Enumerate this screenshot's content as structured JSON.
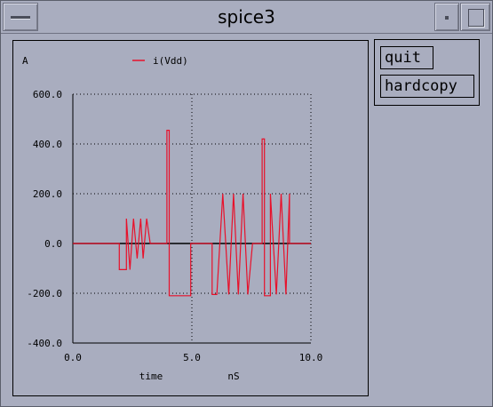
{
  "window": {
    "title": "spice3",
    "menu_icon": "window-menu-icon",
    "minimize_icon": "minimize-icon",
    "maximize_icon": "maximize-icon"
  },
  "buttons": {
    "quit": "quit",
    "hardcopy": "hardcopy"
  },
  "colors": {
    "background": "#a9adbf",
    "trace": "#e8102a",
    "zero_line": "#000000"
  },
  "chart_data": {
    "type": "line",
    "ylabel": "A",
    "xlabel": "time",
    "xunit": "nS",
    "legend": [
      {
        "name": "i(Vdd)",
        "color": "#e8102a"
      }
    ],
    "legend_position": "top",
    "xlim": [
      0,
      10
    ],
    "ylim": [
      -400,
      600
    ],
    "x_ticks": [
      "0.0",
      "5.0",
      "10.0"
    ],
    "x_tick_values": [
      0,
      5,
      10
    ],
    "y_ticks": [
      "600.0",
      "400.0",
      "200.0",
      "0.0",
      "-200.0",
      "-400.0"
    ],
    "y_tick_values": [
      600,
      400,
      200,
      0,
      -200,
      -400
    ],
    "grid": "dotted",
    "series": [
      {
        "name": "i(Vdd)",
        "x": [
          0,
          1.0,
          1.0,
          1.95,
          1.95,
          2.25,
          2.25,
          2.4,
          2.55,
          2.7,
          2.85,
          2.95,
          3.1,
          3.25,
          3.25,
          3.95,
          3.95,
          4.05,
          4.05,
          4.95,
          4.95,
          5.85,
          5.85,
          6.05,
          6.05,
          6.3,
          6.55,
          6.75,
          6.95,
          7.15,
          7.35,
          7.55,
          7.55,
          7.95,
          7.95,
          8.05,
          8.05,
          8.3,
          8.3,
          8.55,
          8.75,
          8.95,
          9.1,
          9.1,
          10.0
        ],
        "y": [
          0,
          0,
          0,
          0,
          -105,
          -105,
          100,
          -105,
          100,
          -60,
          100,
          -60,
          100,
          0,
          0,
          0,
          455,
          455,
          -210,
          -210,
          0,
          0,
          -205,
          -205,
          -205,
          200,
          -205,
          200,
          -205,
          200,
          -205,
          0,
          0,
          0,
          420,
          420,
          -210,
          -210,
          200,
          -205,
          200,
          -205,
          200,
          0,
          0
        ]
      }
    ]
  }
}
